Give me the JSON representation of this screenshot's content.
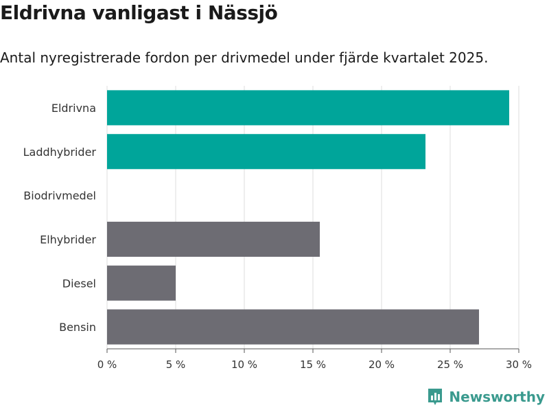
{
  "chart_data": {
    "type": "bar",
    "orientation": "horizontal",
    "title": "Eldrivna vanligast i Nässjö",
    "subtitle": "Antal nyregistrerade fordon per drivmedel under fjärde kvartalet 2025.",
    "categories": [
      "Eldrivna",
      "Laddhybrider",
      "Biodrivmedel",
      "Elhybrider",
      "Diesel",
      "Bensin"
    ],
    "values": [
      29.3,
      23.2,
      0,
      15.5,
      5.0,
      27.1
    ],
    "highlight": [
      true,
      true,
      true,
      false,
      false,
      false
    ],
    "colors": {
      "highlight": "#00a59a",
      "default": "#6d6c73",
      "grid": "#dddddd",
      "axis": "#555555"
    },
    "xlim": [
      0,
      30
    ],
    "xticks": [
      0,
      5,
      10,
      15,
      20,
      25,
      30
    ],
    "xtick_labels": [
      "0 %",
      "5 %",
      "10 %",
      "15 %",
      "20 %",
      "25 %",
      "30 %"
    ],
    "xlabel": "",
    "ylabel": ""
  },
  "brand": {
    "name": "Newsworthy",
    "icon": "newsworthy-logo-icon",
    "color": "#3a9a8e"
  }
}
